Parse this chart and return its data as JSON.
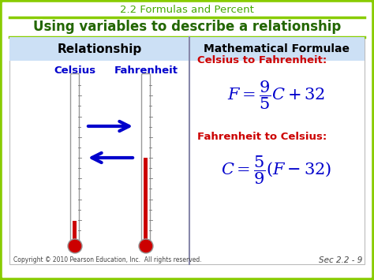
{
  "title_top": "2.2 Formulas and Percent",
  "title_main": "Using variables to describe a relationship",
  "header_left": "Relationship",
  "header_right": "Mathematical Formulae",
  "celsius_label": "Celsius",
  "fahrenheit_label": "Fahrenheit",
  "formula1_label": "Celsius to Fahrenheit:",
  "formula1": "$F = \\dfrac{9}{5}C + 32$",
  "formula2_label": "Fahrenheit to Celsius:",
  "formula2": "$C = \\dfrac{5}{9}(F - 32)$",
  "copyright": "Copyright © 2010 Pearson Education, Inc.  All rights reserved.",
  "section": "Sec 2.2 - 9",
  "bg_color": "#ffffff",
  "outer_border_color": "#88cc00",
  "header_bg_color": "#cce0f5",
  "title_top_color": "#44aa00",
  "title_main_color": "#226600",
  "header_text_color": "#000000",
  "celsius_color": "#0000cc",
  "fahrenheit_color": "#0000cc",
  "formula_label_color": "#cc0000",
  "formula_color": "#0000cc",
  "arrow_color": "#0000cc",
  "thermo_red": "#cc0000",
  "thermo_border": "#999999"
}
